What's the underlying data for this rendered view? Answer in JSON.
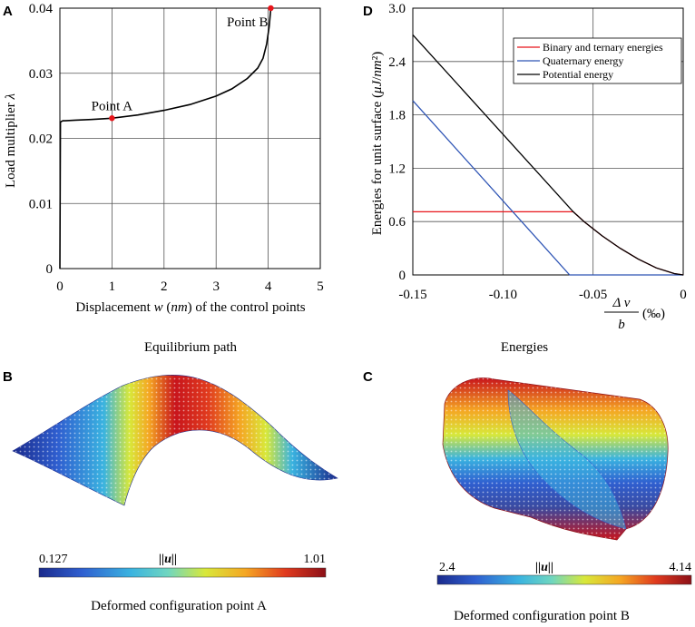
{
  "chart_data": [
    {
      "panel": "A",
      "type": "line",
      "caption": "Equilibrium path",
      "xlabel": "Displacement w (nm) of the control points",
      "ylabel": "Load multiplier λ",
      "xlim": [
        0,
        5
      ],
      "ylim": [
        0,
        0.04
      ],
      "xticks": [
        "0",
        "1",
        "2",
        "3",
        "4",
        "5"
      ],
      "yticks": [
        "0",
        "0.01",
        "0.02",
        "0.03",
        "0.04"
      ],
      "grid": true,
      "series": [
        {
          "name": "equilibrium path",
          "color": "#000000",
          "x": [
            0,
            0.01,
            0.03,
            0.06,
            0.1,
            0.3,
            0.6,
            1.0,
            1.5,
            2.0,
            2.5,
            3.0,
            3.3,
            3.6,
            3.8,
            3.9,
            3.97,
            4.02,
            4.05
          ],
          "y": [
            0,
            0.0225,
            0.0226,
            0.0227,
            0.0227,
            0.0228,
            0.0229,
            0.0231,
            0.0236,
            0.0243,
            0.0252,
            0.0265,
            0.0276,
            0.0292,
            0.0308,
            0.0323,
            0.0345,
            0.0372,
            0.04
          ]
        }
      ],
      "points": [
        {
          "label": "Point A",
          "x": 1.0,
          "y": 0.0231,
          "color": "#e8151b"
        },
        {
          "label": "Point B",
          "x": 4.05,
          "y": 0.04,
          "color": "#e8151b"
        }
      ]
    },
    {
      "panel": "D",
      "type": "line",
      "caption": "Energies",
      "xlabel": "Δv / b (‰)",
      "xlabel_num": "Δ v",
      "xlabel_den": "b",
      "xlabel_unit": "(‰)",
      "ylabel": "Energies for unit surface (μJ/nm²)",
      "xlim": [
        -0.15,
        0
      ],
      "ylim": [
        0,
        3.0
      ],
      "xticks": [
        "-0.15",
        "-0.10",
        "-0.05",
        "0"
      ],
      "yticks": [
        "0",
        "0.6",
        "1.2",
        "1.8",
        "2.4",
        "3.0"
      ],
      "grid": true,
      "series": [
        {
          "name": "Binary and ternary energies",
          "color": "#e8151b",
          "x": [
            -0.15,
            -0.061,
            -0.055,
            -0.045,
            -0.035,
            -0.025,
            -0.015,
            -0.005,
            0
          ],
          "y": [
            0.71,
            0.71,
            0.6,
            0.44,
            0.3,
            0.18,
            0.08,
            0.015,
            0
          ]
        },
        {
          "name": "Quaternary energy",
          "color": "#2f55b5",
          "x": [
            -0.15,
            -0.063,
            0
          ],
          "y": [
            1.96,
            0,
            0
          ]
        },
        {
          "name": "Potential energy",
          "color": "#000000",
          "x": [
            -0.15,
            -0.061,
            -0.055,
            -0.045,
            -0.035,
            -0.025,
            -0.015,
            -0.005,
            0
          ],
          "y": [
            2.7,
            0.71,
            0.6,
            0.44,
            0.3,
            0.18,
            0.08,
            0.015,
            0
          ]
        }
      ]
    }
  ],
  "panels": {
    "A": {
      "letter": "A"
    },
    "B": {
      "letter": "B",
      "caption": "Deformed configuration point A",
      "colorbar": {
        "min": "0.127",
        "max": "1.01",
        "label": "||u||"
      }
    },
    "C": {
      "letter": "C",
      "caption": "Deformed configuration point B",
      "colorbar": {
        "min": "2.4",
        "max": "4.14",
        "label": "||u||"
      }
    },
    "D": {
      "letter": "D"
    }
  },
  "colormap": [
    "#1a2a8c",
    "#2f5fd0",
    "#3ab3e0",
    "#6fd6c0",
    "#d8e83a",
    "#f5a623",
    "#e03a1e",
    "#8c1018"
  ]
}
